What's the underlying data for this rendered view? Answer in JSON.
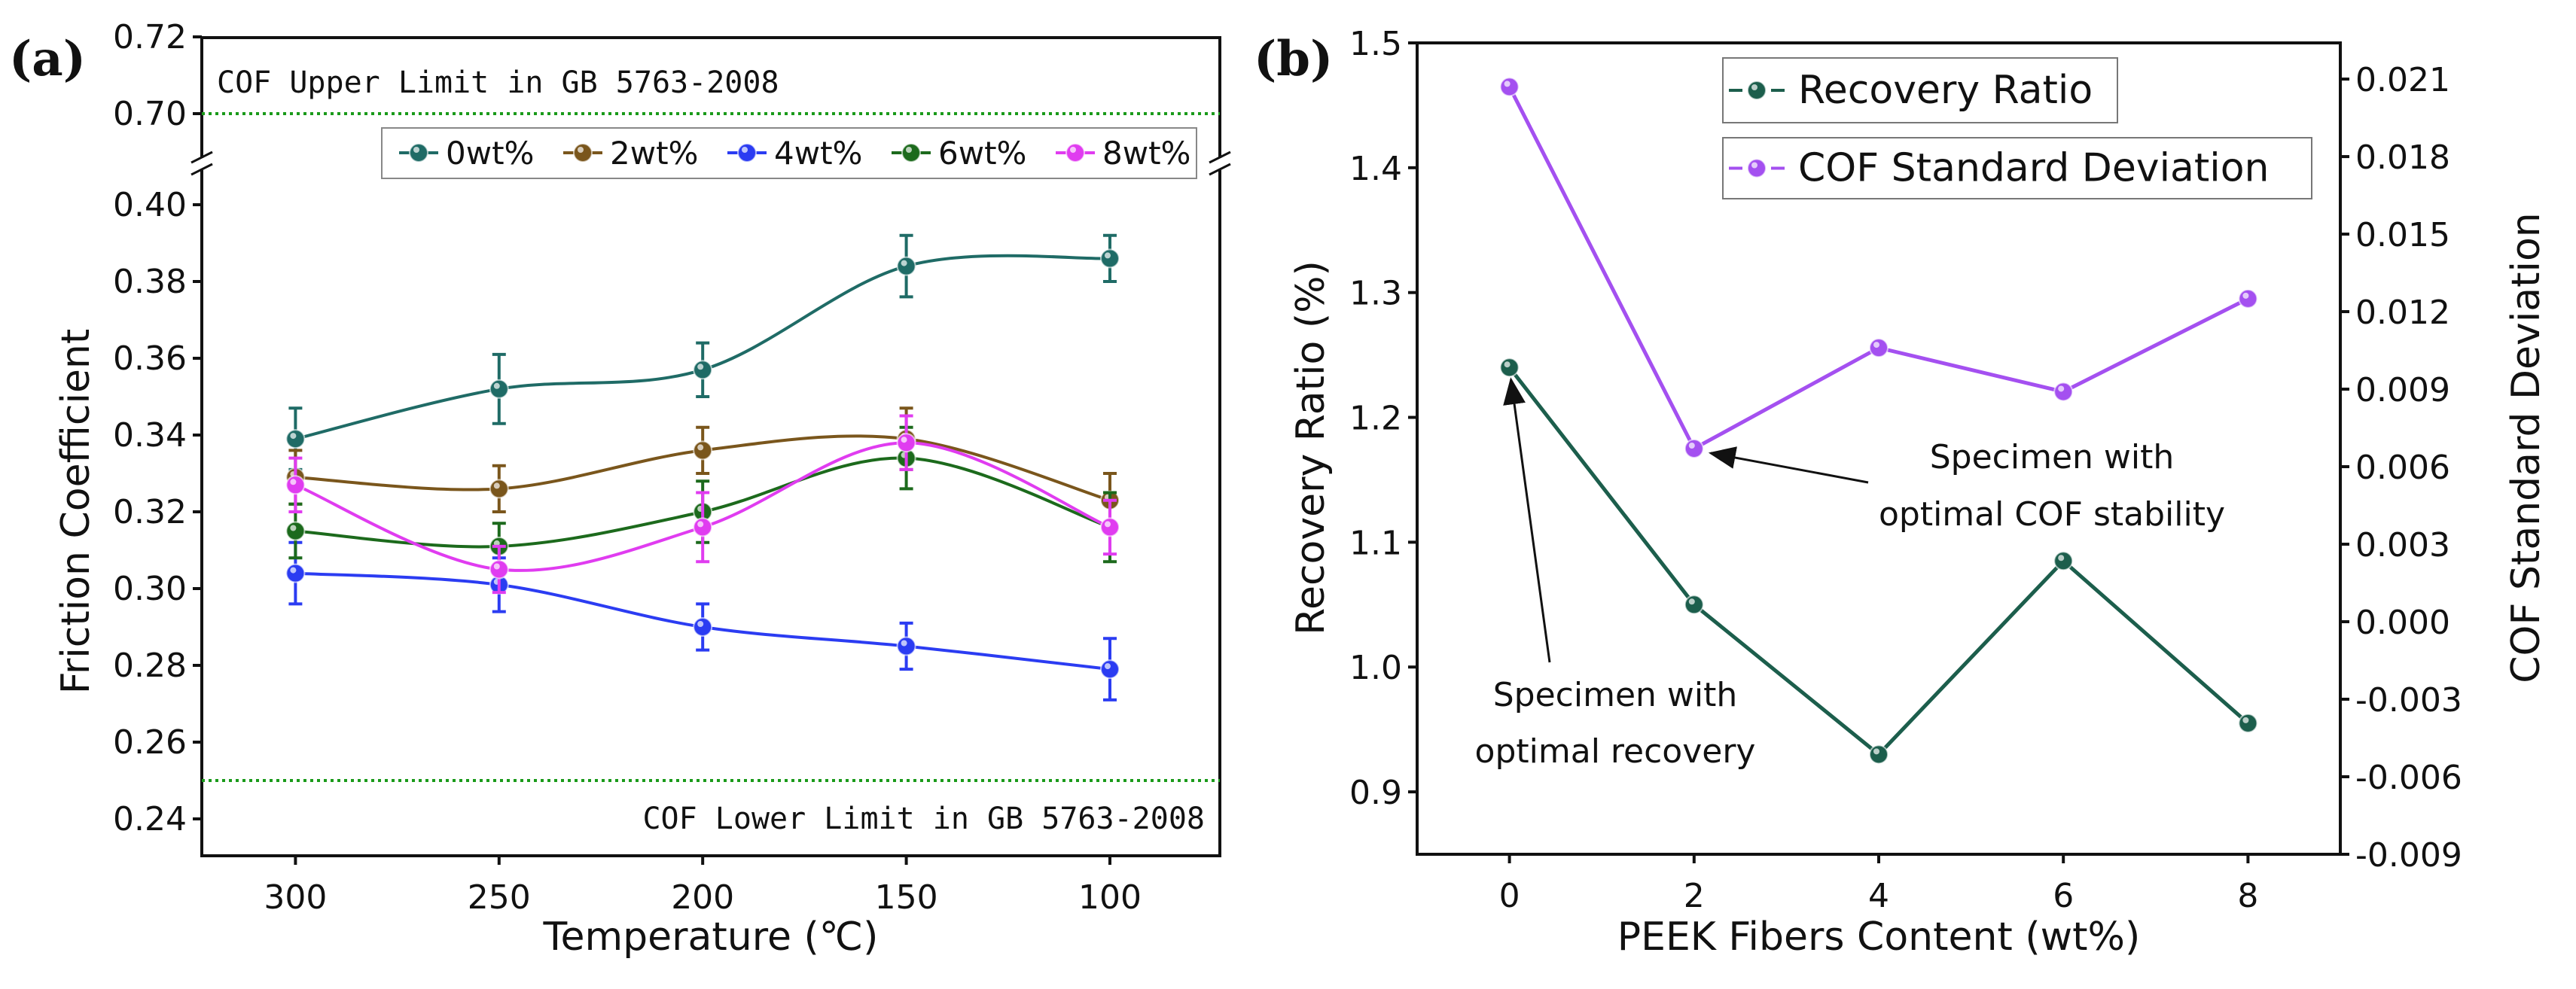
{
  "chart_data": [
    {
      "panel_label": "(a)",
      "type": "line",
      "xlabel": "Temperature (℃)",
      "ylabel": "Friction Coefficient",
      "x": [
        300,
        250,
        200,
        150,
        100
      ],
      "xlim": [
        323,
        73
      ],
      "xticks": [
        "300",
        "250",
        "200",
        "150",
        "100"
      ],
      "ylim_lower": [
        0.23,
        0.41
      ],
      "ylim_upper": [
        0.687,
        0.72
      ],
      "yticks": [
        "0.24",
        "0.26",
        "0.28",
        "0.30",
        "0.32",
        "0.34",
        "0.36",
        "0.38",
        "0.40",
        "0.70",
        "0.72"
      ],
      "axis_break": true,
      "smoothed": true,
      "legend_placement": "top",
      "series": [
        {
          "name": "0wt%",
          "color": "#1f6b66",
          "values": [
            0.339,
            0.352,
            0.357,
            0.384,
            0.386
          ],
          "errors": [
            0.008,
            0.009,
            0.007,
            0.008,
            0.006
          ]
        },
        {
          "name": "2wt%",
          "color": "#7a561c",
          "values": [
            0.329,
            0.326,
            0.336,
            0.339,
            0.323
          ],
          "errors": [
            0.007,
            0.006,
            0.006,
            0.008,
            0.007
          ]
        },
        {
          "name": "4wt%",
          "color": "#2b3cf2",
          "values": [
            0.304,
            0.301,
            0.29,
            0.285,
            0.279
          ],
          "errors": [
            0.008,
            0.007,
            0.006,
            0.006,
            0.008
          ]
        },
        {
          "name": "6wt%",
          "color": "#1c6a1c",
          "values": [
            0.315,
            0.311,
            0.32,
            0.334,
            0.316
          ],
          "errors": [
            0.007,
            0.006,
            0.008,
            0.008,
            0.009
          ]
        },
        {
          "name": "8wt%",
          "color": "#e03cf0",
          "values": [
            0.327,
            0.305,
            0.316,
            0.338,
            0.316
          ],
          "errors": [
            0.007,
            0.006,
            0.009,
            0.007,
            0.007
          ]
        }
      ],
      "reference_lines": [
        {
          "value": 0.7,
          "label": "COF Upper Limit in GB 5763-2008",
          "color": "#1a9a1a",
          "style": "dotted"
        },
        {
          "value": 0.25,
          "label": "COF Lower Limit in GB 5763-2008",
          "color": "#1a9a1a",
          "style": "dotted"
        }
      ]
    },
    {
      "panel_label": "(b)",
      "type": "line",
      "xlabel": "PEEK Fibers Content (wt%)",
      "ylabel": "Recovery Ratio (%)",
      "ylabel_right": "COF Standard Deviation",
      "x": [
        0,
        2,
        4,
        6,
        8
      ],
      "xlim": [
        -1,
        9
      ],
      "xticks": [
        "0",
        "2",
        "4",
        "6",
        "8"
      ],
      "ylim": [
        0.85,
        1.5
      ],
      "yticks": [
        "0.9",
        "1.0",
        "1.1",
        "1.2",
        "1.3",
        "1.4",
        "1.5"
      ],
      "ylim_right": [
        -0.009,
        0.0224
      ],
      "yticks_right": [
        "-0.009",
        "-0.006",
        "-0.003",
        "0.000",
        "0.003",
        "0.006",
        "0.009",
        "0.012",
        "0.015",
        "0.018",
        "0.021"
      ],
      "legend_placement": "top-center",
      "series": [
        {
          "name": "Recovery Ratio",
          "axis": "left",
          "color": "#1c5e4c",
          "values": [
            1.24,
            1.05,
            0.93,
            1.085,
            0.955
          ]
        },
        {
          "name": "COF Standard Deviation",
          "axis": "right",
          "color": "#a450f0",
          "values": [
            0.0207,
            0.0067,
            0.0106,
            0.0089,
            0.0125
          ]
        }
      ],
      "annotations": [
        {
          "lines": [
            "Specimen with",
            "optimal COF stability"
          ],
          "points_to": {
            "series": "COF Standard Deviation",
            "x": 2
          }
        },
        {
          "lines": [
            "Specimen with",
            "optimal recovery"
          ],
          "points_to": {
            "series": "Recovery Ratio",
            "x": 0
          }
        }
      ]
    }
  ]
}
